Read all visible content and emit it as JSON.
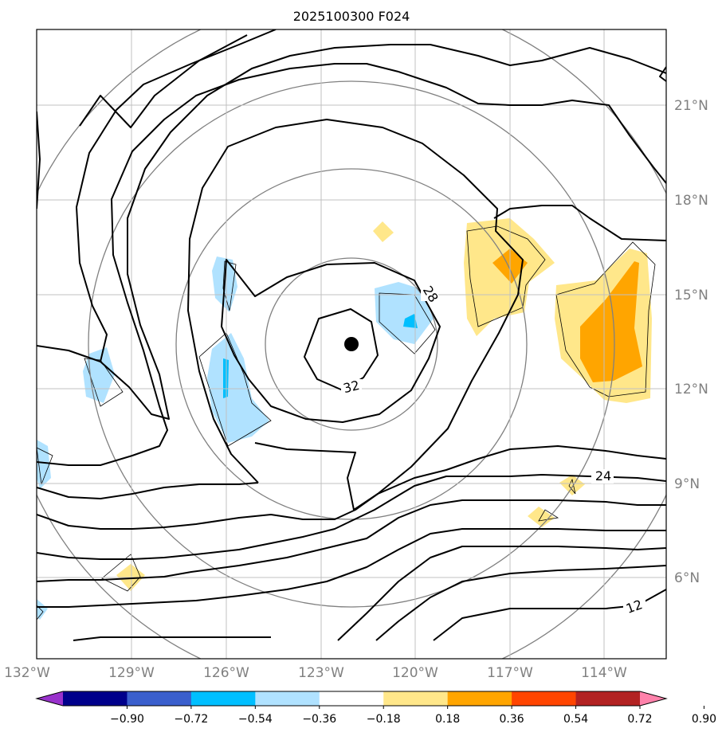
{
  "title": "2025100300 F024",
  "map": {
    "lon_labels": [
      "132°W",
      "129°W",
      "126°W",
      "123°W",
      "120°W",
      "117°W",
      "114°W"
    ],
    "lat_labels": [
      "21°N",
      "18°N",
      "15°N",
      "12°N",
      "9°N",
      "6°N"
    ],
    "contour_labels": [
      "32",
      "28",
      "24",
      "12"
    ],
    "storm_center_marker": "filled-circle"
  },
  "colorbar": {
    "tick_labels": [
      "−0.90",
      "−0.72",
      "−0.54",
      "−0.36",
      "−0.18",
      "0.18",
      "0.36",
      "0.54",
      "0.72",
      "0.90"
    ],
    "colors": [
      "#9932cc",
      "#00008b",
      "#3a5fcd",
      "#00bfff",
      "#b0e2ff",
      "#ffffff",
      "#ffe78a",
      "#ffa500",
      "#ff4500",
      "#b22222",
      "#ff82ab"
    ],
    "extend": "both"
  },
  "colors": {
    "contour": "#000000",
    "range_ring": "#808080",
    "grid": "#c0c0c0",
    "axis_label": "#808080"
  }
}
